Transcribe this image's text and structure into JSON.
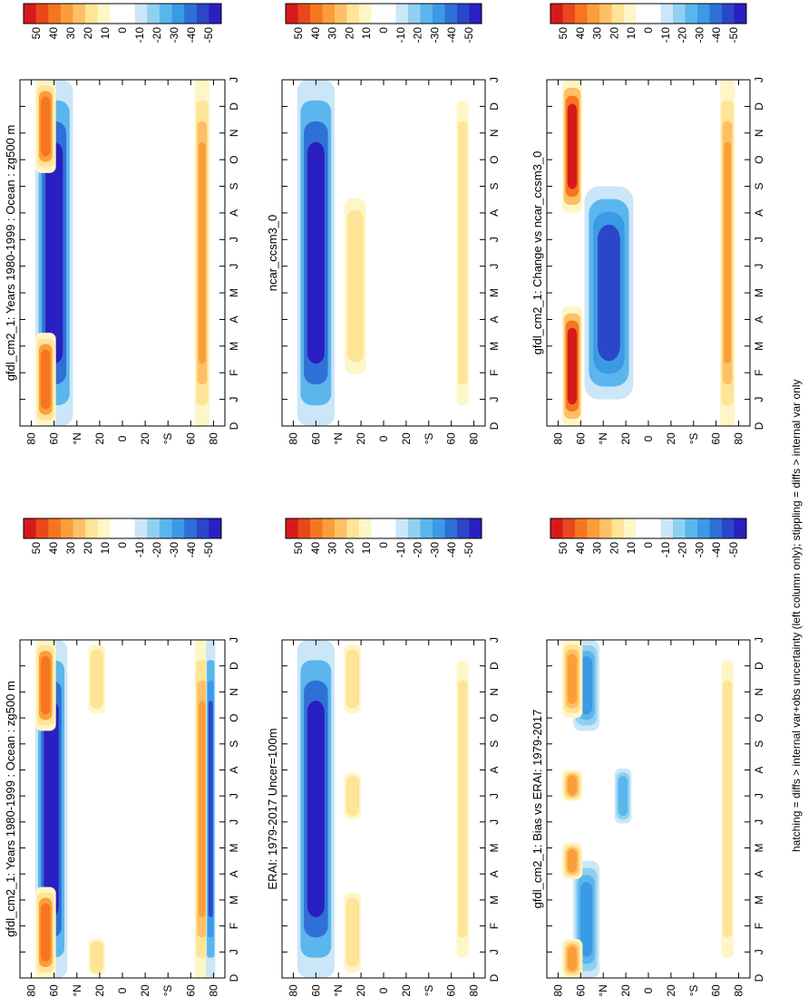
{
  "figure": {
    "footnote": "hatching = diffs > internal var+obs uncertainty (left column only); stippling = diffs > internal var only",
    "lat_ticks": [
      "80",
      "60",
      "°N",
      "20",
      "0",
      "20",
      "°S",
      "60",
      "80"
    ],
    "month_ticks": [
      "D",
      "J",
      "F",
      "M",
      "A",
      "M",
      "J",
      "J",
      "A",
      "S",
      "O",
      "N",
      "D",
      "J"
    ],
    "colorbar_labels": [
      "50",
      "40",
      "30",
      "20",
      "10",
      "0",
      "-10",
      "-20",
      "-30",
      "-40",
      "-50"
    ],
    "colorbar_colors": [
      "#d7191c",
      "#e8481c",
      "#f5761f",
      "#fb9e3a",
      "#fdc067",
      "#fee497",
      "#fff6c7",
      "#ffffff",
      "#ffffff",
      "#cbe6f8",
      "#8fd0f1",
      "#5ab6ec",
      "#3b9ae6",
      "#2f70d6",
      "#2c46c9",
      "#2a1fc0"
    ],
    "panels": [
      {
        "id": "p1",
        "title": "gfdl_cm2_1: Years 1980-1999 : Ocean : zg500 m"
      },
      {
        "id": "p2",
        "title": "gfdl_cm2_1: Years 1980-1999 : Ocean : zg500 m"
      },
      {
        "id": "p3",
        "title": "ERAI: 1979-2017 Uncer=100m"
      },
      {
        "id": "p4",
        "title": "ncar_ccsm3_0"
      },
      {
        "id": "p5",
        "title": "gfdl_cm2_1: Bias vs ERAI: 1979-2017"
      },
      {
        "id": "p6",
        "title": "gfdl_cm2_1: Change vs ncar_ccsm3_0"
      }
    ]
  },
  "chart_data": [
    {
      "type": "heatmap",
      "panel": "p1",
      "title": "gfdl_cm2_1: Years 1980-1999 : Ocean : zg500 m",
      "x": "month (D..J)",
      "y": "latitude 90N..90S",
      "range": [
        -50,
        50
      ],
      "features": [
        {
          "lat_band": "50N-75N",
          "sign": "negative",
          "peak": -50,
          "months": "all year"
        },
        {
          "lat_band": "60N-75N",
          "sign": "positive",
          "peak": 40,
          "months": "Dec-Mar, Oct-Dec"
        },
        {
          "lat_band": "15N-30N",
          "sign": "positive",
          "peak": 20,
          "months": "Dec-Jan, Oct-Dec"
        },
        {
          "lat_band": "65S-75S",
          "sign": "positive",
          "peak": 30,
          "months": "all year"
        },
        {
          "lat_band": "75S-80S",
          "sign": "negative",
          "peak": -40,
          "months": "all year"
        }
      ]
    },
    {
      "type": "heatmap",
      "panel": "p2",
      "title": "gfdl_cm2_1: Years 1980-1999 : Ocean : zg500 m",
      "range": [
        -50,
        50
      ],
      "features": [
        {
          "lat_band": "45N-75N",
          "sign": "negative",
          "peak": -50,
          "months": "all year"
        },
        {
          "lat_band": "60N-75N",
          "sign": "positive",
          "peak": 40,
          "months": "Dec-Mar, Oct-Dec"
        },
        {
          "lat_band": "65S-75S",
          "sign": "positive",
          "peak": 30,
          "months": "all year"
        }
      ]
    },
    {
      "type": "heatmap",
      "panel": "p3",
      "title": "ERAI: 1979-2017 Uncer=100m",
      "range": [
        -50,
        50
      ],
      "features": [
        {
          "lat_band": "45N-75N",
          "sign": "negative",
          "peak": -50,
          "months": "all year"
        },
        {
          "lat_band": "20N-35N",
          "sign": "positive",
          "peak": 20,
          "months": "Dec-Mar, Jun-Aug, Oct-Dec"
        },
        {
          "lat_band": "65S-75S",
          "sign": "positive",
          "peak": 20,
          "months": "all year"
        }
      ]
    },
    {
      "type": "heatmap",
      "panel": "p4",
      "title": "ncar_ccsm3_0",
      "range": [
        -50,
        50
      ],
      "features": [
        {
          "lat_band": "45N-75N",
          "sign": "negative",
          "peak": -50,
          "months": "all year"
        },
        {
          "lat_band": "15N-35N",
          "sign": "positive",
          "peak": 20,
          "months": "Feb-Sep"
        },
        {
          "lat_band": "65S-75S",
          "sign": "positive",
          "peak": 20,
          "months": "all year"
        }
      ]
    },
    {
      "type": "heatmap",
      "panel": "p5",
      "title": "gfdl_cm2_1: Bias vs ERAI: 1979-2017",
      "range": [
        -50,
        50
      ],
      "features": [
        {
          "lat_band": "45N-65N",
          "sign": "negative",
          "peak": -30,
          "months": "Dec-Apr, Oct-Dec"
        },
        {
          "lat_band": "60N-75N",
          "sign": "positive",
          "peak": 30,
          "months": "Dec-Jan, Apr-May, Jul-Aug, Oct-Dec"
        },
        {
          "lat_band": "15N-30N",
          "sign": "negative",
          "peak": -20,
          "months": "Jun-Aug"
        },
        {
          "lat_band": "65S-75S",
          "sign": "positive",
          "peak": 20,
          "months": "all year"
        }
      ]
    },
    {
      "type": "heatmap",
      "panel": "p6",
      "title": "gfdl_cm2_1: Change vs ncar_ccsm3_0",
      "range": [
        -50,
        50
      ],
      "features": [
        {
          "lat_band": "60N-75N",
          "sign": "positive",
          "peak": 50,
          "months": "Dec-Apr, Aug-Dec"
        },
        {
          "lat_band": "15N-55N",
          "sign": "negative",
          "peak": -40,
          "months": "Jan-Sep"
        },
        {
          "lat_band": "65S-75S",
          "sign": "positive",
          "peak": 30,
          "months": "all year"
        }
      ]
    }
  ]
}
